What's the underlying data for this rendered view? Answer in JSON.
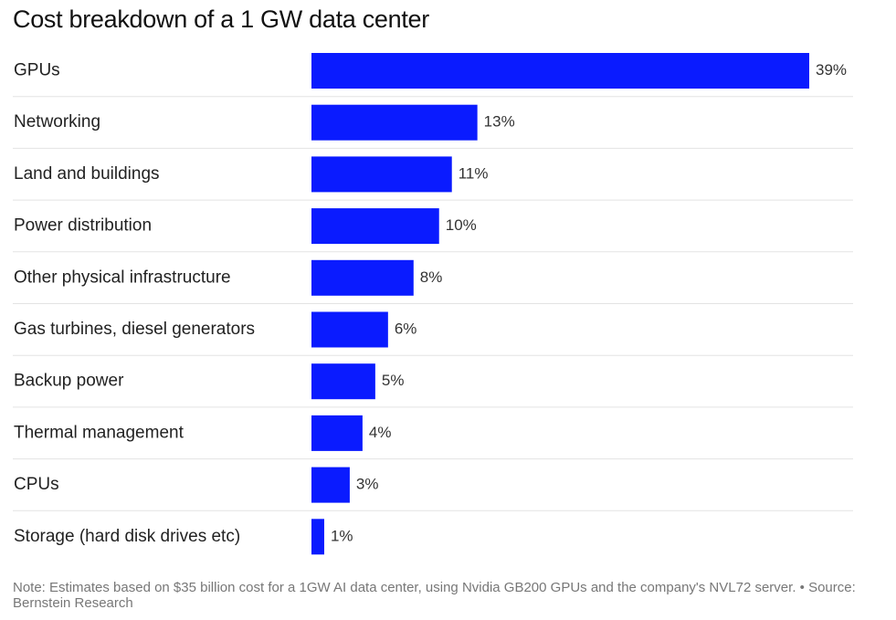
{
  "title": "Cost breakdown of a 1 GW data center",
  "note": "Note: Estimates based on $35 billion cost for a 1GW AI data center, using Nvidia GB200 GPUs and the company's NVL72 server. • Source: Bernstein Research",
  "colors": {
    "bar": "#0a1bff",
    "gridline": "#e3e3e3",
    "label": "#222222"
  },
  "chart_data": {
    "type": "bar",
    "orientation": "horizontal",
    "title": "Cost breakdown of a 1 GW data center",
    "categories": [
      "GPUs",
      "Networking",
      "Land and buildings",
      "Power distribution",
      "Other physical infrastructure",
      "Gas turbines, diesel generators",
      "Backup power",
      "Thermal management",
      "CPUs",
      "Storage (hard disk drives etc)"
    ],
    "values": [
      39,
      13,
      11,
      10,
      8,
      6,
      5,
      4,
      3,
      1
    ],
    "value_labels": [
      "39%",
      "13%",
      "11%",
      "10%",
      "8%",
      "6%",
      "5%",
      "4%",
      "3%",
      "1%"
    ],
    "unit": "%",
    "xlim": [
      0,
      39
    ],
    "grid": false,
    "legend": "none"
  }
}
